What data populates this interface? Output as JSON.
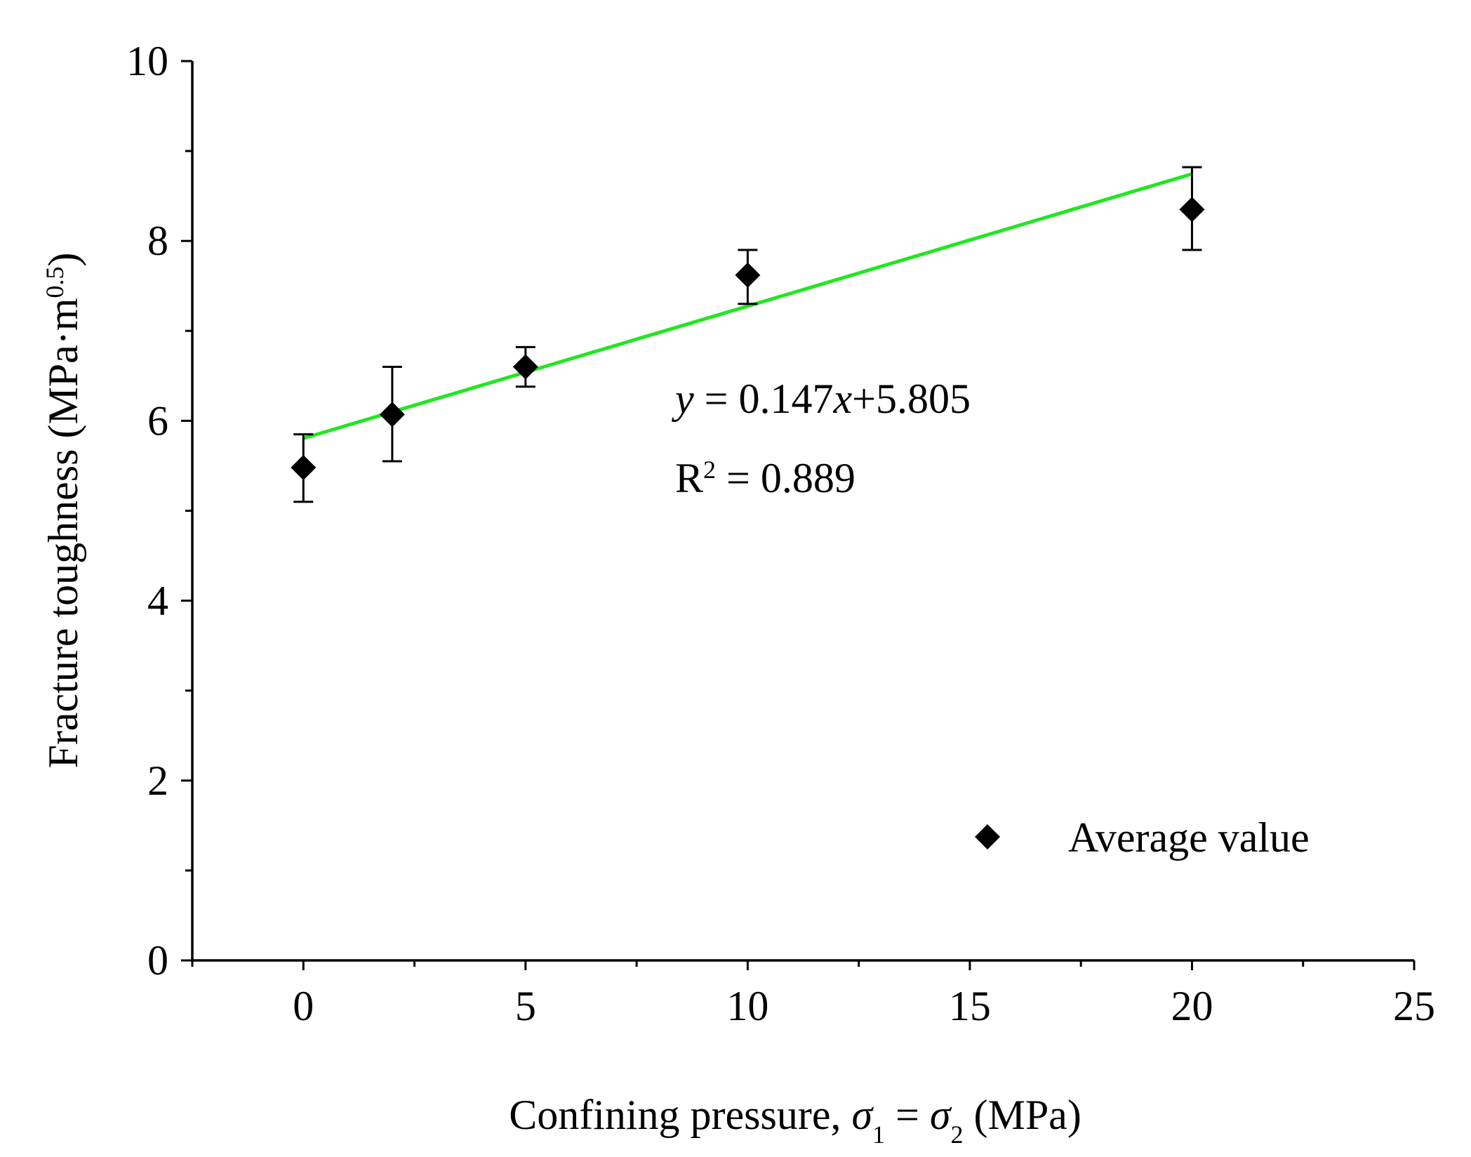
{
  "chart_data": {
    "type": "scatter",
    "x_axis": {
      "label_prefix": "Confining pressure, ",
      "sym1": "σ",
      "sub1": "1",
      "eq": " = ",
      "sym2": "σ",
      "sub2": "2",
      "unit": " (MPa)",
      "range": [
        -2.5,
        25
      ],
      "ticks": [
        0,
        5,
        10,
        15,
        20,
        25
      ],
      "tick_labels": [
        "0",
        "5",
        "10",
        "15",
        "20",
        "25"
      ],
      "minor_step": 2.5
    },
    "y_axis": {
      "label_main": "Fracture toughness (MPa·m",
      "label_sup": "0.5",
      "label_close": ")",
      "range": [
        0,
        10
      ],
      "ticks": [
        0,
        2,
        4,
        6,
        8,
        10
      ],
      "tick_labels": [
        "0",
        "2",
        "4",
        "6",
        "8",
        "10"
      ],
      "minor_step": 1
    },
    "series": [
      {
        "name": "Average value",
        "marker": "diamond",
        "color": "#000000",
        "x": [
          0,
          2,
          5,
          10,
          20
        ],
        "y": [
          5.48,
          6.07,
          6.6,
          7.62,
          8.35
        ],
        "err_low": [
          5.1,
          5.55,
          6.38,
          7.3,
          7.9
        ],
        "err_high": [
          5.85,
          6.6,
          6.82,
          7.9,
          8.82
        ]
      }
    ],
    "fit": {
      "slope": 0.147,
      "intercept": 5.805,
      "x_range": [
        0,
        20
      ],
      "color": "#22e622",
      "eq_y": "y",
      "eq_mid": " = 0.147",
      "eq_x": "x",
      "eq_end": "+5.805",
      "r2_prefix": "R",
      "r2_sup": "2",
      "r2_value": " = 0.889"
    },
    "legend": {
      "label": "Average value",
      "placement": "bottom-right"
    }
  }
}
